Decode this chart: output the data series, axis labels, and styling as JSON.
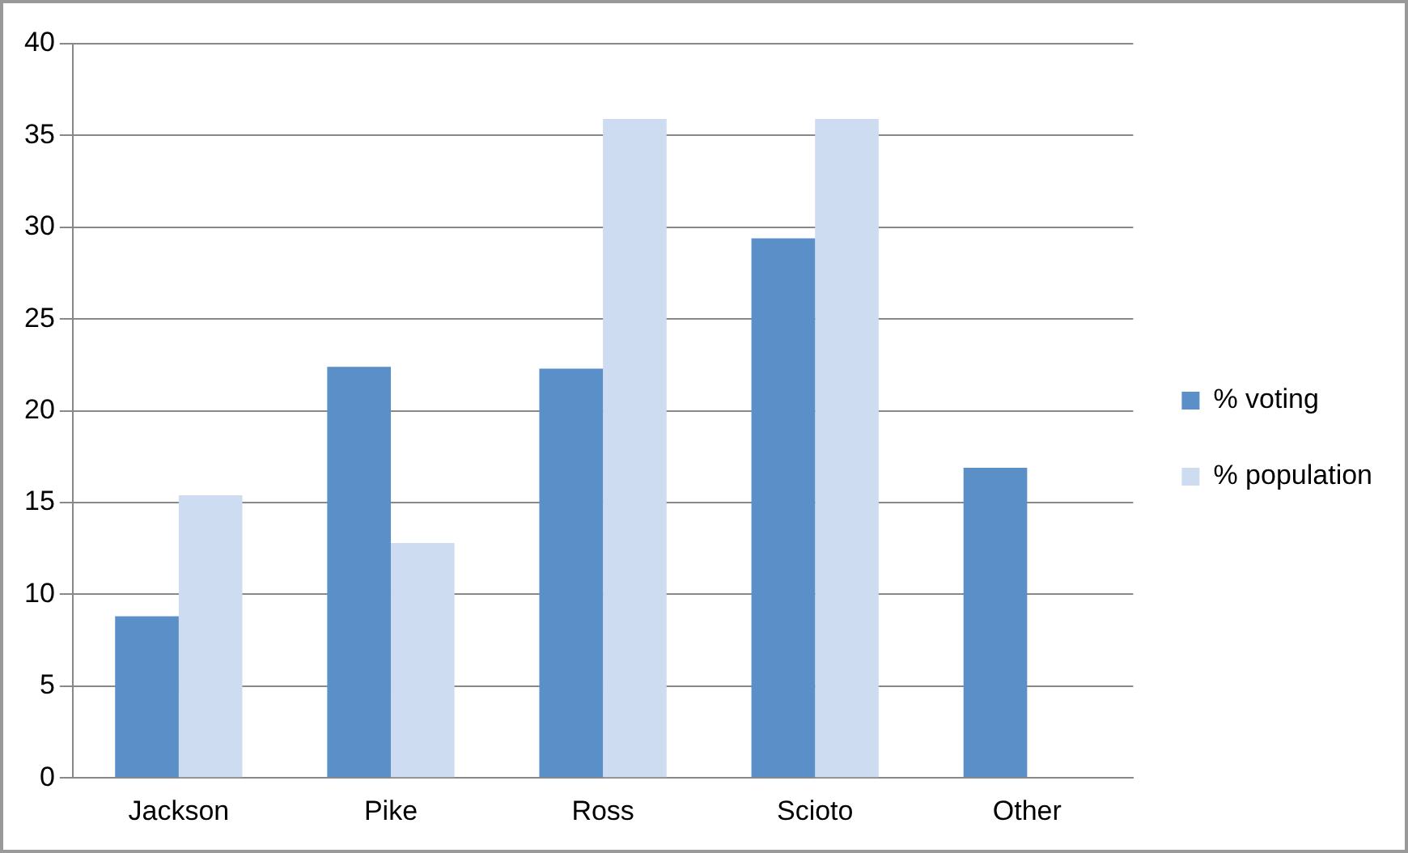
{
  "chart_data": {
    "type": "bar",
    "categories": [
      "Jackson",
      "Pike",
      "Ross",
      "Scioto",
      "Other"
    ],
    "series": [
      {
        "name": "% voting",
        "color": "#5b8fc7",
        "values": [
          8.8,
          22.4,
          22.3,
          29.4,
          16.9
        ]
      },
      {
        "name": "% population",
        "color": "#cddcf1",
        "values": [
          15.4,
          12.8,
          35.9,
          35.9,
          null
        ]
      }
    ],
    "ylim": [
      0,
      40
    ],
    "yticks": [
      0,
      5,
      10,
      15,
      20,
      25,
      30,
      35,
      40
    ],
    "grid": "y",
    "legend": "right"
  }
}
